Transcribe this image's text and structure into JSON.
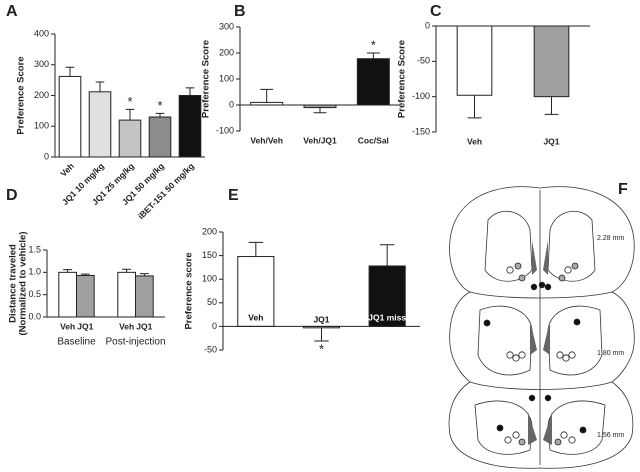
{
  "chart_data": [
    {
      "type": "bar",
      "panel": "A",
      "y_label": "Preference Score",
      "categories": [
        "Veh",
        "JQ1 10 mg/kg",
        "JQ1 25 mg/kg",
        "JQ1 50 mg/kg",
        "iBET-151 50 mg/kg"
      ],
      "values": [
        262,
        212,
        120,
        130,
        200
      ],
      "errors": [
        30,
        32,
        35,
        12,
        25
      ],
      "significance": [
        null,
        null,
        "*",
        "*",
        null
      ],
      "colors": [
        "#ffffff",
        "#e0e0e0",
        "#c4c4c4",
        "#8c8c8c",
        "#111111"
      ],
      "ylim": [
        0,
        400
      ],
      "yticks": [
        0,
        100,
        200,
        300,
        400
      ]
    },
    {
      "type": "bar",
      "panel": "B",
      "y_label": "Preference Score",
      "categories": [
        "Veh/Veh",
        "Veh/JQ1",
        "Coc/Sal"
      ],
      "values": [
        10,
        -10,
        178
      ],
      "errors": [
        50,
        20,
        22
      ],
      "significance": [
        null,
        null,
        "*"
      ],
      "colors": [
        "#ffffff",
        "#a0a0a0",
        "#111111"
      ],
      "ylim": [
        -100,
        300
      ],
      "yticks": [
        -100,
        0,
        100,
        200,
        300
      ]
    },
    {
      "type": "bar",
      "panel": "C",
      "y_label": "Preference Score",
      "categories": [
        "Veh",
        "JQ1"
      ],
      "values": [
        -98,
        -100
      ],
      "errors": [
        32,
        25
      ],
      "colors": [
        "#ffffff",
        "#a0a0a0"
      ],
      "ylim": [
        -150,
        0
      ],
      "yticks": [
        -150,
        -100,
        -50,
        0
      ]
    },
    {
      "type": "grouped_bar",
      "panel": "D",
      "y_label": [
        "Distance traveled",
        "(Normalized to vehicle)"
      ],
      "categories": [
        "Baseline",
        "Post-injection"
      ],
      "series": [
        {
          "name": "Veh",
          "color": "#ffffff",
          "values": [
            1.0,
            1.0
          ],
          "errors": [
            0.06,
            0.07
          ]
        },
        {
          "name": "JQ1",
          "color": "#a0a0a0",
          "values": [
            0.93,
            0.92
          ],
          "errors": [
            0.03,
            0.05
          ]
        }
      ],
      "ylim": [
        0,
        1.5
      ],
      "yticks": [
        {
          "value": 0,
          "label": "0.0"
        },
        0.5,
        {
          "value": 1,
          "label": "1.0"
        },
        1.5
      ]
    },
    {
      "type": "bar",
      "panel": "E",
      "y_label": "Preference score",
      "categories": [
        "Veh",
        "JQ1",
        "JQ1 miss"
      ],
      "values": [
        148,
        -3,
        128
      ],
      "errors": [
        30,
        28,
        45
      ],
      "significance": [
        null,
        "*",
        null
      ],
      "colors": [
        "#ffffff",
        "#ffffff",
        "#111111"
      ],
      "ylim": [
        -50,
        200
      ],
      "yticks": [
        -50,
        0,
        50,
        100,
        150,
        200
      ]
    }
  ],
  "diagram": {
    "panel": "F",
    "labels": [
      "2.28 mm",
      "1.80 mm",
      "1.56 mm"
    ]
  }
}
